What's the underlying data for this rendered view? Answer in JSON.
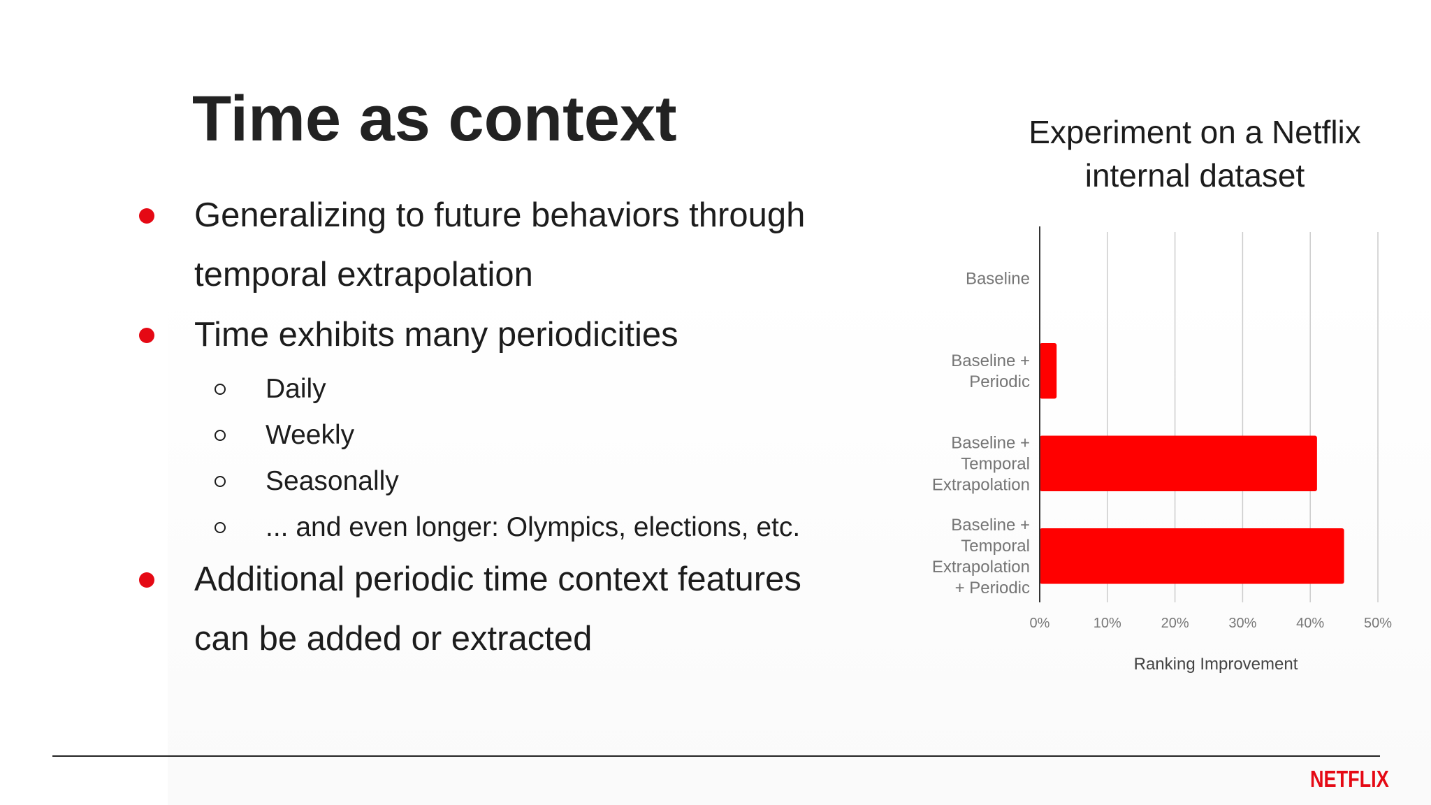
{
  "slide": {
    "title": "Time as context",
    "bullets": [
      {
        "lines": [
          "Generalizing to future behaviors through",
          "temporal extrapolation"
        ]
      },
      {
        "lines": [
          "Time exhibits many periodicities"
        ],
        "sub": [
          "Daily",
          "Weekly",
          "Seasonally",
          "... and even longer: Olympics, elections, etc."
        ]
      },
      {
        "lines": [
          "Additional periodic time context features",
          "can be added or extracted"
        ]
      }
    ]
  },
  "brand": {
    "logo_text": "NETFLIX",
    "accent_color": "#e50914"
  },
  "chart_data": {
    "type": "bar",
    "orientation": "horizontal",
    "title": "Experiment on a Netflix internal dataset",
    "title_lines": [
      "Experiment on a Netflix",
      "internal dataset"
    ],
    "categories": [
      [
        "Baseline"
      ],
      [
        "Baseline +",
        "Periodic"
      ],
      [
        "Baseline +",
        "Temporal",
        "Extrapolation"
      ],
      [
        "Baseline +",
        "Temporal",
        "Extrapolation",
        "+ Periodic"
      ]
    ],
    "values": [
      0,
      2.5,
      41,
      45
    ],
    "xlabel": "Ranking Improvement",
    "ylabel": "",
    "xlim": [
      0,
      50
    ],
    "x_ticks": [
      "0%",
      "10%",
      "20%",
      "30%",
      "40%",
      "50%"
    ],
    "bar_color": "#ff0000",
    "grid": true
  }
}
